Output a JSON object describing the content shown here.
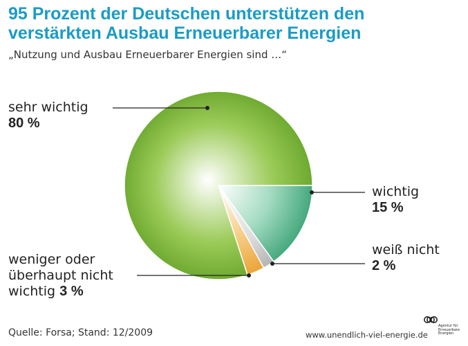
{
  "header": {
    "title_line1": "95 Prozent der Deutschen unterstützen den",
    "title_line2": "verstärkten Ausbau Erneuerbarer Energien",
    "subtitle": "„Nutzung und Ausbau Erneuerbarer Energien sind …“"
  },
  "chart_data": {
    "type": "pie",
    "title": "95 Prozent der Deutschen unterstützen den verstärkten Ausbau Erneuerbarer Energien",
    "subtitle": "„Nutzung und Ausbau Erneuerbarer Energien sind …“",
    "unit": "%",
    "slices": [
      {
        "label": "sehr wichtig",
        "value": 80,
        "value_label": "80 %",
        "color": "#6aa62c"
      },
      {
        "label": "wichtig",
        "value": 15,
        "value_label": "15 %",
        "color": "#4cae84"
      },
      {
        "label": "weiß nicht",
        "value": 2,
        "value_label": "2 %",
        "color": "#b9b9b9"
      },
      {
        "label": "weniger oder überhaupt nicht wichtig",
        "value": 3,
        "value_label": "3 %",
        "color": "#eea535"
      }
    ]
  },
  "labels": {
    "sehr_wichtig": {
      "text": "sehr wichtig",
      "value": "80 %"
    },
    "wichtig": {
      "text": "wichtig",
      "value": "15 %"
    },
    "weiss_nicht": {
      "text": "weiß nicht",
      "value": "2 %"
    },
    "weniger": {
      "line1": "weniger oder",
      "line2": "überhaupt nicht",
      "line3": "wichtig",
      "value": "3 %"
    }
  },
  "footer": {
    "source": "Quelle: Forsa; Stand: 12/2009",
    "url": "www.unendlich-viel-energie.de"
  },
  "logo": {
    "line1": "Agentur für",
    "line2": "Erneuerbare",
    "line3": "Energien"
  }
}
